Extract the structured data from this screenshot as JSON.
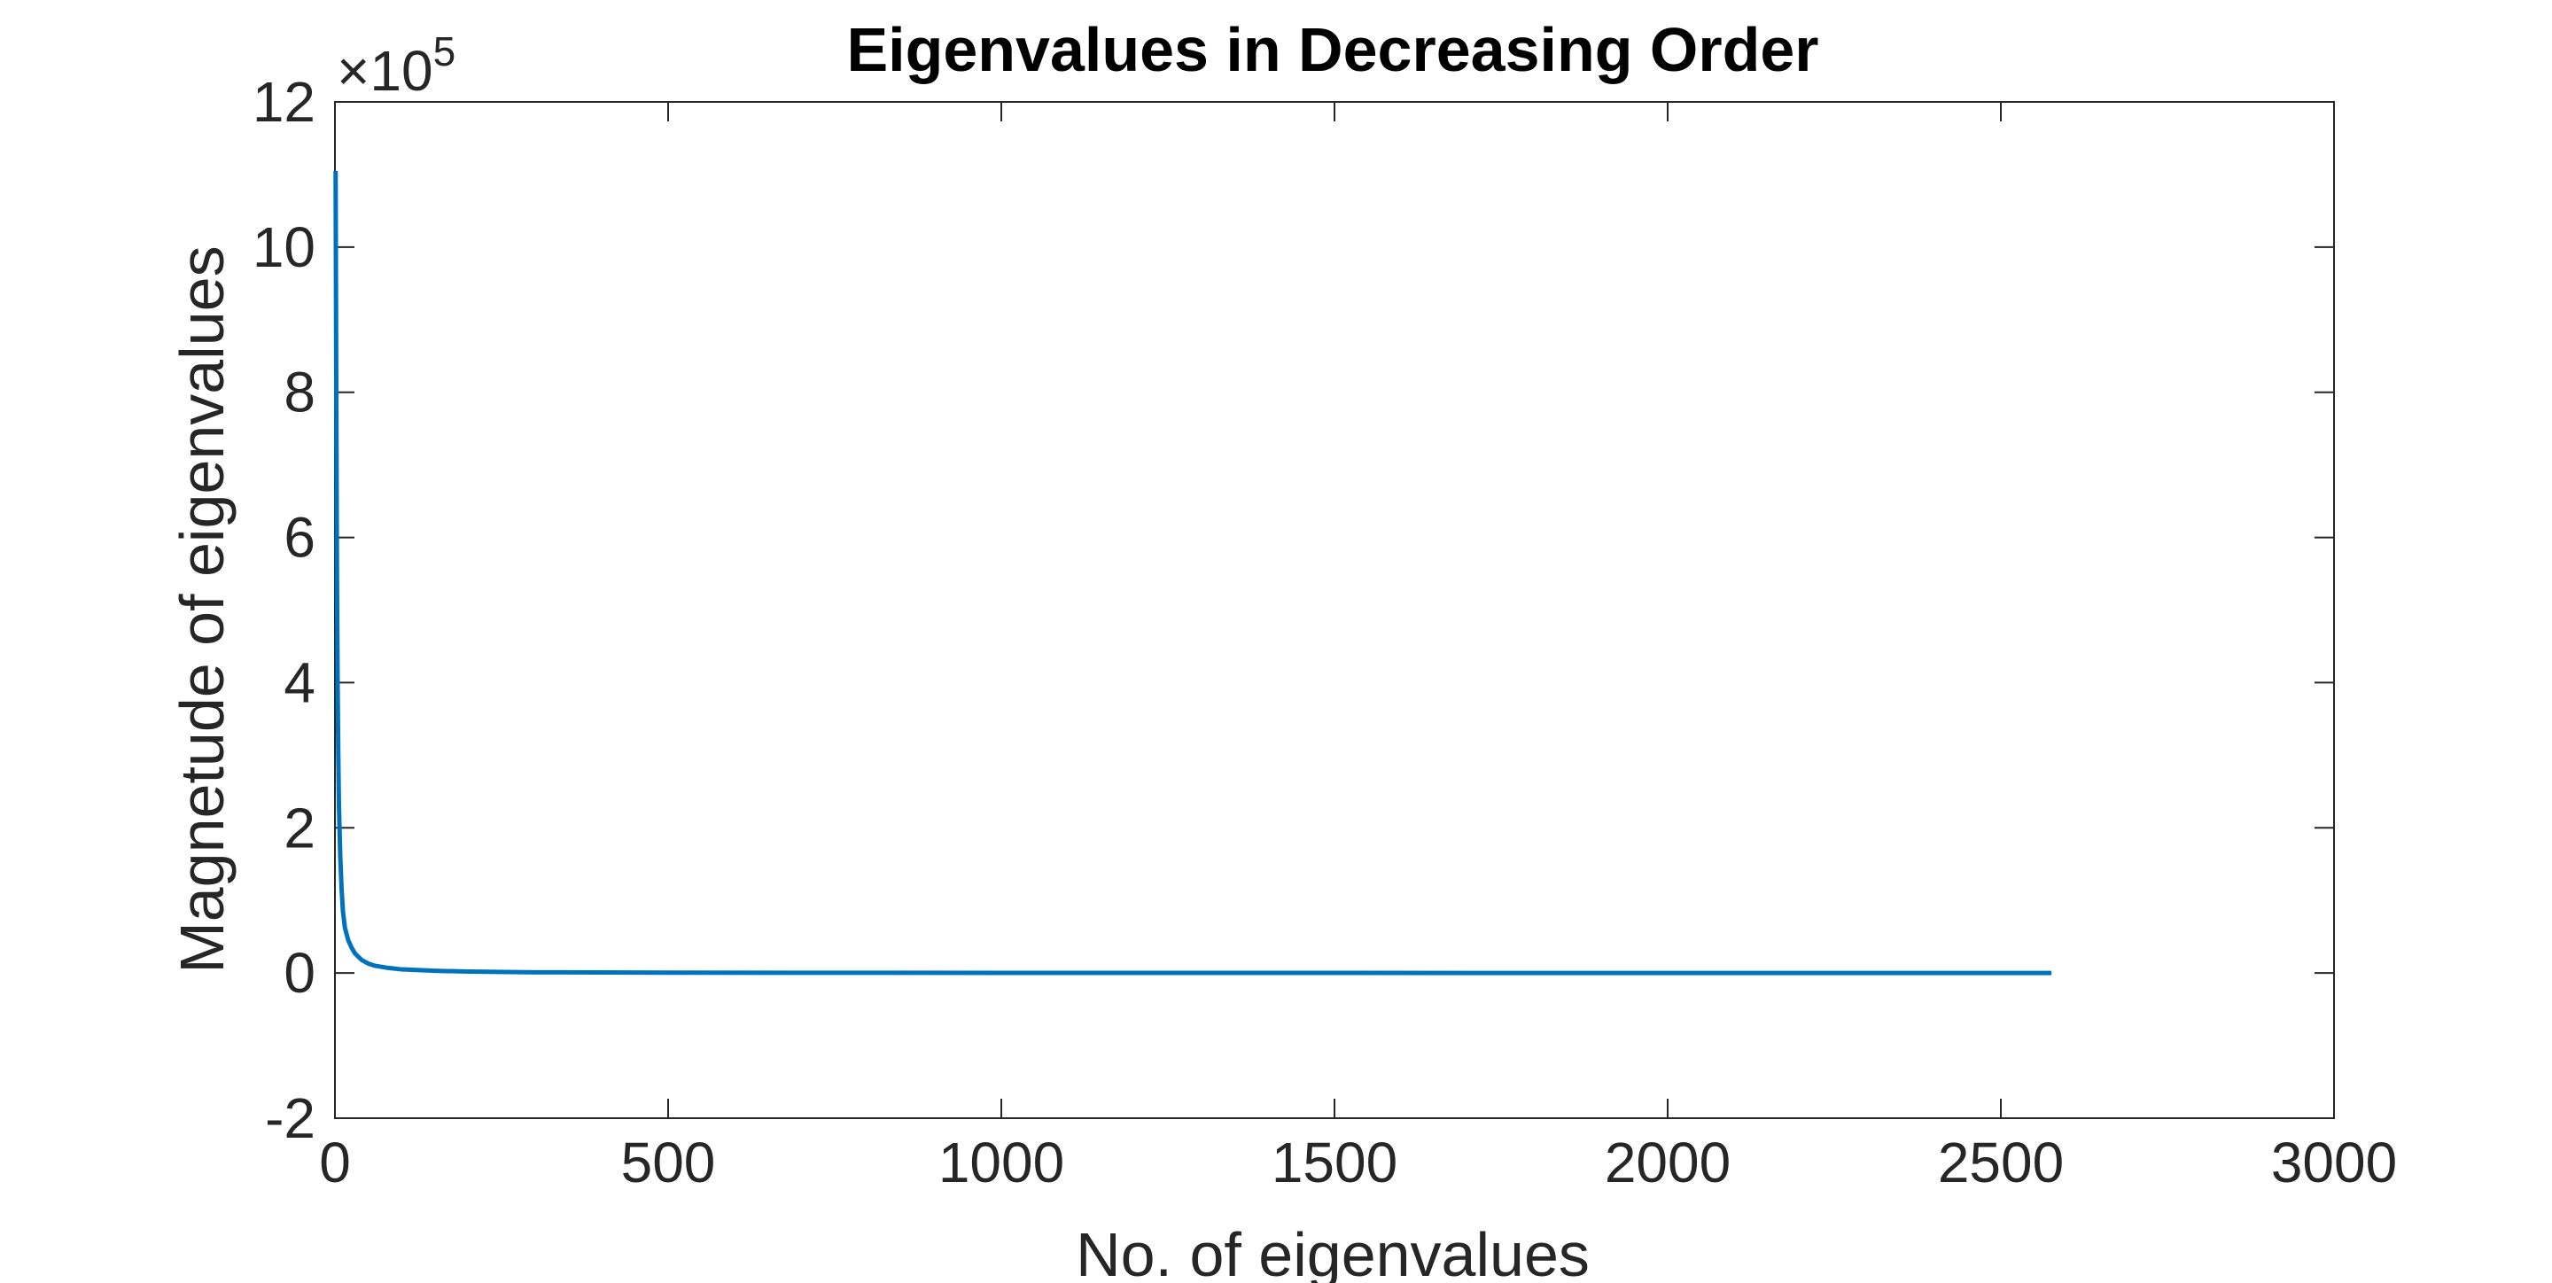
{
  "chart_data": {
    "type": "line",
    "title": "Eigenvalues in Decreasing Order",
    "xlabel": "No. of eigenvalues",
    "ylabel": "Magnetude of eigenvalues",
    "xlim": [
      0,
      3000
    ],
    "ylim": [
      -2,
      12
    ],
    "y_multiplier_label": {
      "prefix": "×10",
      "exponent": "5"
    },
    "xticks": [
      0,
      500,
      1000,
      1500,
      2000,
      2500,
      3000
    ],
    "xtick_labels": [
      "0",
      "500",
      "1000",
      "1500",
      "2000",
      "2500",
      "3000"
    ],
    "yticks": [
      -2,
      0,
      2,
      4,
      6,
      8,
      10,
      12
    ],
    "ytick_labels": [
      "-2",
      "0",
      "2",
      "4",
      "6",
      "8",
      "10",
      "12"
    ],
    "grid": false,
    "box": true,
    "series": [
      {
        "color": "#0072BD",
        "x": [
          1,
          2,
          3,
          4,
          5,
          6,
          8,
          10,
          12,
          15,
          20,
          25,
          30,
          40,
          50,
          60,
          80,
          100,
          150,
          200,
          300,
          500,
          1000,
          1500,
          2000,
          2576
        ],
        "y": [
          11.05,
          8.0,
          5.5,
          4.0,
          3.0,
          2.3,
          1.6,
          1.15,
          0.85,
          0.62,
          0.45,
          0.35,
          0.27,
          0.18,
          0.13,
          0.1,
          0.07,
          0.05,
          0.03,
          0.02,
          0.01,
          0.005,
          0.002,
          0.001,
          0.0005,
          0.0001
        ]
      }
    ]
  }
}
